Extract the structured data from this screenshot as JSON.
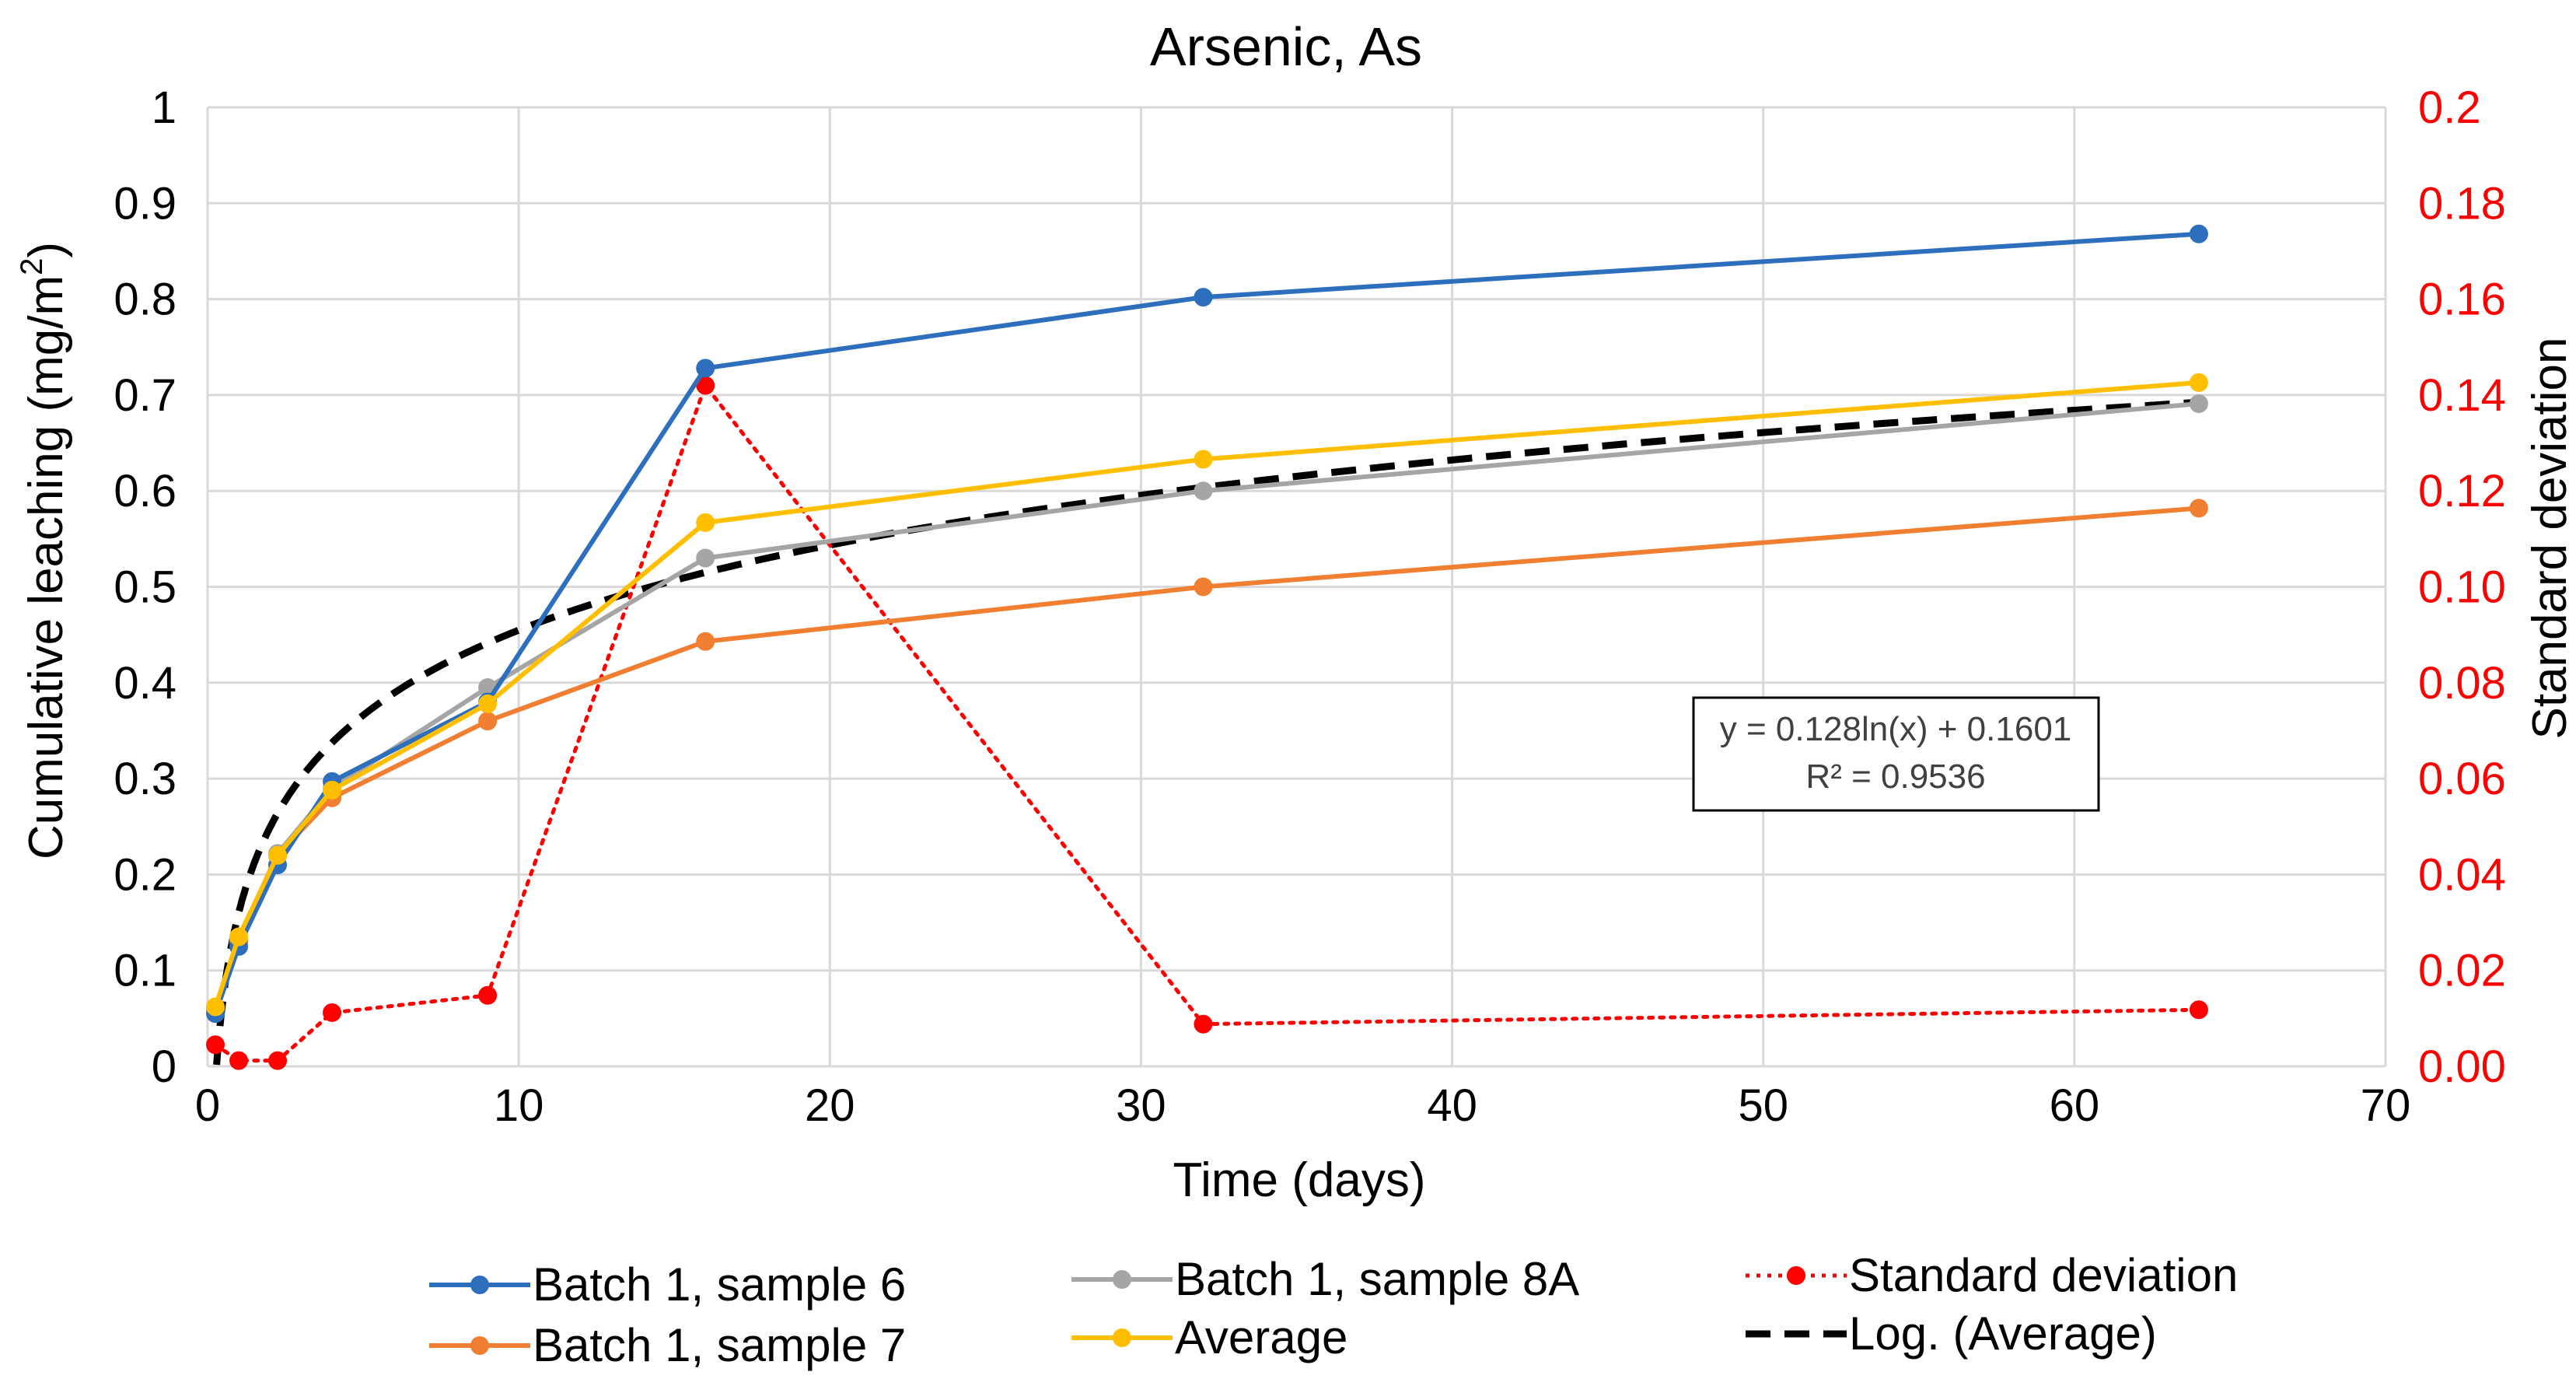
{
  "chart_data": {
    "type": "line",
    "title": "Arsenic, As",
    "xlabel": "Time (days)",
    "ylabel": "Cumulative leaching (mg/m",
    "ylabel_superscript": "2",
    "ylabel_close": ")",
    "y2label": "Standard deviation",
    "xlim": [
      0,
      70
    ],
    "ylim": [
      0,
      1
    ],
    "y2lim": [
      0,
      0.2
    ],
    "xticks": [
      0,
      10,
      20,
      30,
      40,
      50,
      60,
      70
    ],
    "yticks": [
      0,
      0.1,
      0.2,
      0.3,
      0.4,
      0.5,
      0.6,
      0.7,
      0.8,
      0.9,
      1
    ],
    "ytick_labels": [
      "0",
      "0.1",
      "0.2",
      "0.3",
      "0.4",
      "0.5",
      "0.6",
      "0.7",
      "0.8",
      "0.9",
      "1"
    ],
    "y2ticks": [
      0,
      0.02,
      0.04,
      0.06,
      0.08,
      0.1,
      0.12,
      0.14,
      0.16,
      0.18,
      0.2
    ],
    "y2tick_labels": [
      "0.00",
      "0.02",
      "0.04",
      "0.06",
      "0.08",
      "0.10",
      "0.12",
      "0.14",
      "0.16",
      "0.18",
      "0.2"
    ],
    "grid": true,
    "legend_position": "bottom",
    "x": [
      0.25,
      1,
      2.25,
      4,
      9,
      16,
      32,
      64
    ],
    "series": [
      {
        "name": "Batch 1, sample 6",
        "axis": "left",
        "color": "#2E6FBD",
        "style": "solid",
        "values": [
          0.055,
          0.125,
          0.21,
          0.297,
          0.38,
          0.728,
          0.802,
          0.868
        ]
      },
      {
        "name": "Batch 1, sample 7",
        "axis": "left",
        "color": "#F07F32",
        "style": "solid",
        "values": [
          0.06,
          0.13,
          0.22,
          0.28,
          0.36,
          0.443,
          0.5,
          0.582
        ]
      },
      {
        "name": "Batch 1, sample 8A",
        "axis": "left",
        "color": "#A5A5A5",
        "style": "solid",
        "values": [
          0.06,
          0.132,
          0.222,
          0.29,
          0.395,
          0.53,
          0.6,
          0.691
        ]
      },
      {
        "name": "Average",
        "axis": "left",
        "color": "#FFBF00",
        "style": "solid",
        "values": [
          0.062,
          0.135,
          0.22,
          0.288,
          0.378,
          0.567,
          0.633,
          0.713
        ]
      },
      {
        "name": "Standard deviation",
        "axis": "right",
        "color": "#FF0000",
        "style": "dotted",
        "values": [
          0.0045,
          0.0012,
          0.0012,
          0.0112,
          0.0148,
          0.142,
          0.0088,
          0.0118
        ]
      }
    ],
    "trendline": {
      "name": "Log. (Average)",
      "of": "Average",
      "kind": "logarithmic",
      "a": 0.128,
      "b": 0.1601,
      "x_start": 0.29,
      "x_end": 64,
      "color": "#000000",
      "style": "dashed",
      "equation": "y = 0.128ln(x) + 0.1601",
      "r_squared": "R² = 0.9536"
    }
  }
}
